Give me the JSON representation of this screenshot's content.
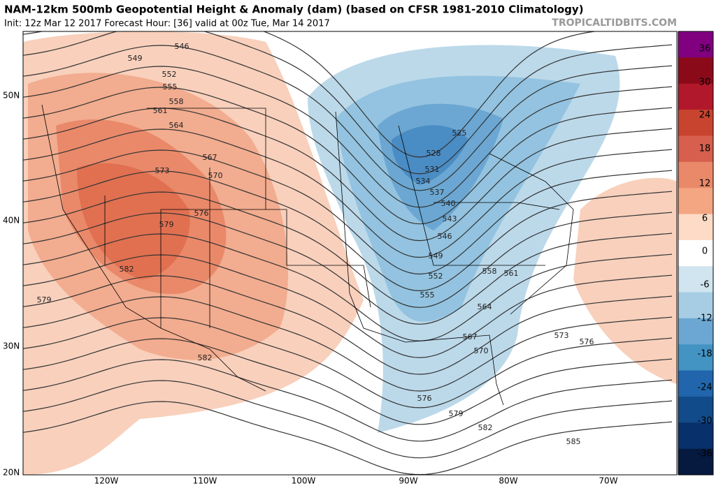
{
  "header": {
    "title": "NAM-12km 500mb Geopotential Height & Anomaly (dam) (based on CFSR 1981-2010 Climatology)",
    "subtitle": "Init: 12z Mar 12 2017   Forecast Hour: [36]   valid at 00z Tue, Mar 14 2017",
    "site": "TROPICALTIDBITS.COM"
  },
  "map": {
    "lat_labels": [
      "50N",
      "40N",
      "30N",
      "20N"
    ],
    "lon_labels": [
      "120W",
      "110W",
      "100W",
      "90W",
      "80W",
      "70W"
    ],
    "contour_labels": [
      "546",
      "549",
      "552",
      "555",
      "558",
      "561",
      "564",
      "567",
      "570",
      "573",
      "576",
      "579",
      "582",
      "579",
      "582",
      "525",
      "528",
      "531",
      "534",
      "537",
      "540",
      "543",
      "546",
      "549",
      "552",
      "555",
      "558",
      "561",
      "564",
      "567",
      "570",
      "573",
      "576",
      "576",
      "579",
      "582",
      "585"
    ]
  },
  "colorbar": {
    "labels": [
      "36",
      "30",
      "24",
      "18",
      "12",
      "6",
      "0",
      "-6",
      "-12",
      "-18",
      "-24",
      "-30",
      "-36"
    ]
  }
}
